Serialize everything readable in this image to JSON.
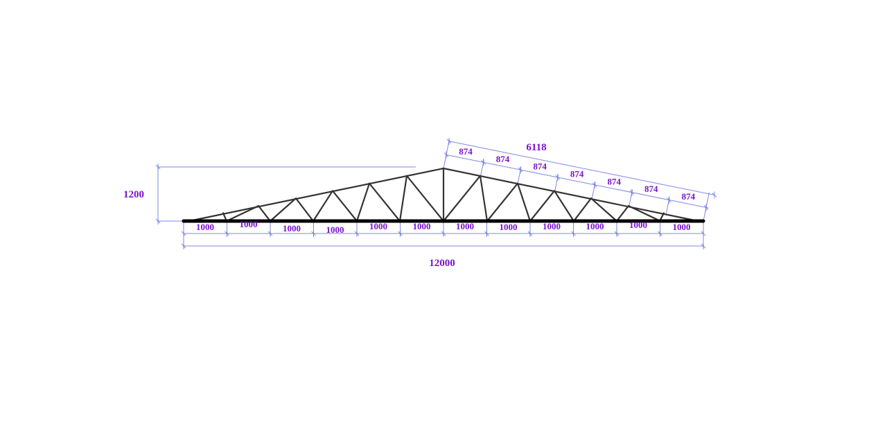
{
  "diagram": {
    "type": "roof truss elevation",
    "colors": {
      "dimension_lines": "#6a72e0",
      "dimension_text": "#7a12d0",
      "members": "#333333",
      "bottom_chord": "#000000"
    },
    "height_label": "1200",
    "span_label": "12000",
    "rafter_label": "6118",
    "bottom_panels": [
      "1000",
      "1000",
      "1000",
      "1000",
      "1000",
      "1000",
      "1000",
      "1000",
      "1000",
      "1000",
      "1000",
      "1000"
    ],
    "top_panels": [
      "874",
      "874",
      "874",
      "874",
      "874",
      "874",
      "874"
    ]
  }
}
